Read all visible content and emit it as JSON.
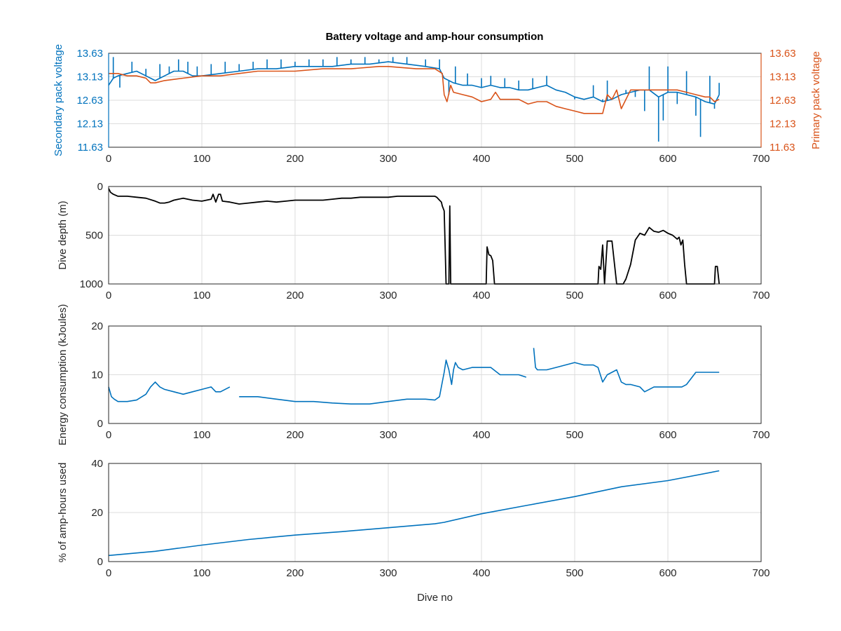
{
  "figure": {
    "title": "Battery voltage and amp-hour consumption",
    "colors": {
      "secondary": "#0072bd",
      "primary": "#d95319",
      "depth": "#000000",
      "energy": "#0072bd",
      "amp_hours": "#0072bd",
      "grid": "#dcdcdc",
      "axis": "#262626"
    }
  },
  "chart_data": [
    {
      "id": "voltage",
      "type": "line",
      "title": "Battery voltage and amp-hour consumption",
      "xlabel": "",
      "ylabel": "Secondary pack voltage",
      "y2label": "Primary pack voltage",
      "xlim": [
        0,
        700
      ],
      "ylim": [
        11.63,
        13.63
      ],
      "y2lim": [
        11.63,
        13.63
      ],
      "xticks": [
        0,
        100,
        200,
        300,
        400,
        500,
        600,
        700
      ],
      "yticks": [
        11.63,
        12.13,
        12.63,
        13.13,
        13.63
      ],
      "y2ticks": [
        11.63,
        12.13,
        12.63,
        13.13,
        13.63
      ],
      "grid": true,
      "series": [
        {
          "key": "secondary",
          "axis": "left",
          "color": "#0072bd",
          "x": [
            0,
            5,
            10,
            20,
            30,
            40,
            50,
            60,
            70,
            80,
            90,
            100,
            120,
            140,
            160,
            180,
            200,
            220,
            240,
            260,
            280,
            300,
            320,
            340,
            355,
            360,
            365,
            370,
            380,
            390,
            400,
            410,
            420,
            430,
            440,
            450,
            460,
            470,
            480,
            490,
            500,
            510,
            520,
            530,
            540,
            550,
            560,
            570,
            580,
            590,
            600,
            610,
            620,
            630,
            640,
            650,
            655
          ],
          "y": [
            12.95,
            13.1,
            13.15,
            13.2,
            13.25,
            13.15,
            13.05,
            13.15,
            13.25,
            13.25,
            13.15,
            13.15,
            13.2,
            13.25,
            13.3,
            13.3,
            13.35,
            13.35,
            13.35,
            13.4,
            13.4,
            13.45,
            13.4,
            13.35,
            13.3,
            13.1,
            13.05,
            13.0,
            12.95,
            12.95,
            12.9,
            12.95,
            12.9,
            12.9,
            12.85,
            12.85,
            12.9,
            12.95,
            12.85,
            12.8,
            12.7,
            12.65,
            12.7,
            12.6,
            12.65,
            12.75,
            12.8,
            12.85,
            12.85,
            12.7,
            12.8,
            12.8,
            12.75,
            12.7,
            12.6,
            12.55,
            12.75
          ],
          "spikes": [
            [
              5,
              13.55
            ],
            [
              12,
              12.9
            ],
            [
              25,
              13.45
            ],
            [
              40,
              13.3
            ],
            [
              55,
              13.4
            ],
            [
              65,
              13.35
            ],
            [
              75,
              13.5
            ],
            [
              85,
              13.45
            ],
            [
              95,
              13.35
            ],
            [
              110,
              13.4
            ],
            [
              125,
              13.45
            ],
            [
              140,
              13.4
            ],
            [
              155,
              13.45
            ],
            [
              170,
              13.5
            ],
            [
              185,
              13.5
            ],
            [
              200,
              13.45
            ],
            [
              215,
              13.5
            ],
            [
              230,
              13.5
            ],
            [
              245,
              13.55
            ],
            [
              260,
              13.5
            ],
            [
              275,
              13.55
            ],
            [
              290,
              13.5
            ],
            [
              305,
              13.55
            ],
            [
              320,
              13.55
            ],
            [
              340,
              13.5
            ],
            [
              355,
              13.5
            ],
            [
              365,
              12.75
            ],
            [
              372,
              13.35
            ],
            [
              385,
              13.2
            ],
            [
              400,
              13.1
            ],
            [
              410,
              13.15
            ],
            [
              425,
              13.1
            ],
            [
              440,
              13.05
            ],
            [
              455,
              13.1
            ],
            [
              470,
              13.15
            ],
            [
              500,
              12.65
            ],
            [
              520,
              12.95
            ],
            [
              530,
              12.65
            ],
            [
              535,
              13.05
            ],
            [
              545,
              12.7
            ],
            [
              555,
              12.85
            ],
            [
              565,
              12.7
            ],
            [
              575,
              12.4
            ],
            [
              580,
              13.35
            ],
            [
              590,
              11.75
            ],
            [
              595,
              12.2
            ],
            [
              600,
              13.35
            ],
            [
              610,
              12.55
            ],
            [
              620,
              13.25
            ],
            [
              630,
              12.3
            ],
            [
              635,
              11.85
            ],
            [
              645,
              13.15
            ],
            [
              650,
              12.45
            ],
            [
              655,
              13.0
            ]
          ]
        },
        {
          "key": "primary",
          "axis": "right",
          "color": "#d95319",
          "x": [
            0,
            10,
            20,
            30,
            40,
            45,
            50,
            60,
            80,
            100,
            120,
            140,
            160,
            180,
            200,
            230,
            260,
            290,
            300,
            330,
            350,
            358,
            360,
            363,
            367,
            370,
            380,
            390,
            400,
            410,
            415,
            420,
            440,
            450,
            460,
            470,
            480,
            490,
            500,
            510,
            520,
            530,
            535,
            540,
            545,
            550,
            560,
            580,
            600,
            610,
            620,
            630,
            640,
            645,
            650,
            655
          ],
          "y": [
            13.2,
            13.2,
            13.15,
            13.15,
            13.1,
            13.0,
            13.0,
            13.05,
            13.1,
            13.15,
            13.15,
            13.2,
            13.25,
            13.25,
            13.25,
            13.3,
            13.3,
            13.35,
            13.35,
            13.3,
            13.3,
            13.2,
            12.75,
            12.6,
            12.95,
            12.8,
            12.75,
            12.7,
            12.6,
            12.65,
            12.8,
            12.65,
            12.65,
            12.55,
            12.6,
            12.6,
            12.5,
            12.45,
            12.4,
            12.35,
            12.35,
            12.35,
            12.75,
            12.65,
            12.85,
            12.45,
            12.85,
            12.85,
            12.85,
            12.85,
            12.8,
            12.75,
            12.7,
            12.7,
            12.6,
            12.65
          ]
        }
      ]
    },
    {
      "id": "depth",
      "type": "line",
      "ylabel": "Dive depth (m)",
      "xlabel": "",
      "xlim": [
        0,
        700
      ],
      "ylim": [
        0,
        1000
      ],
      "y_reversed": true,
      "xticks": [
        0,
        100,
        200,
        300,
        400,
        500,
        600,
        700
      ],
      "yticks": [
        0,
        500,
        1000
      ],
      "grid": true,
      "series": [
        {
          "key": "depth",
          "color": "#000000",
          "x": [
            0,
            2,
            5,
            10,
            20,
            30,
            40,
            50,
            55,
            60,
            65,
            70,
            80,
            90,
            100,
            110,
            112,
            115,
            118,
            120,
            122,
            130,
            140,
            150,
            160,
            170,
            180,
            190,
            200,
            210,
            220,
            230,
            240,
            250,
            260,
            270,
            280,
            290,
            300,
            310,
            320,
            330,
            340,
            345,
            350,
            352,
            355,
            357,
            358,
            360,
            361,
            362,
            363,
            365,
            366,
            367,
            368,
            370,
            380,
            390,
            400,
            405,
            406,
            408,
            410,
            412,
            414,
            416,
            420,
            440,
            460,
            480,
            500,
            520,
            525,
            526,
            528,
            530,
            532,
            535,
            540,
            545,
            550,
            552,
            555,
            560,
            565,
            570,
            575,
            580,
            585,
            590,
            595,
            600,
            605,
            610,
            612,
            614,
            616,
            618,
            620,
            630,
            640,
            650,
            651,
            653,
            655
          ],
          "y": [
            20,
            60,
            80,
            100,
            100,
            110,
            120,
            150,
            170,
            170,
            160,
            140,
            120,
            140,
            150,
            130,
            80,
            160,
            80,
            80,
            150,
            160,
            180,
            170,
            160,
            150,
            160,
            150,
            140,
            140,
            140,
            140,
            130,
            120,
            120,
            110,
            110,
            110,
            110,
            100,
            100,
            100,
            100,
            100,
            100,
            110,
            140,
            160,
            200,
            250,
            600,
            1000,
            1000,
            1000,
            200,
            1000,
            1000,
            1000,
            1000,
            1000,
            1000,
            1000,
            620,
            700,
            710,
            760,
            1000,
            1000,
            1000,
            1000,
            1000,
            1000,
            1000,
            1000,
            1000,
            820,
            850,
            600,
            1000,
            560,
            560,
            1000,
            1000,
            1000,
            950,
            800,
            550,
            480,
            500,
            420,
            460,
            470,
            450,
            480,
            500,
            540,
            520,
            600,
            550,
            800,
            1000,
            1000,
            1000,
            1000,
            820,
            820,
            1000
          ]
        }
      ]
    },
    {
      "id": "energy",
      "type": "line",
      "ylabel": "Energy consumption (kJoules)",
      "xlabel": "",
      "xlim": [
        0,
        700
      ],
      "ylim": [
        0,
        20
      ],
      "xticks": [
        0,
        100,
        200,
        300,
        400,
        500,
        600,
        700
      ],
      "yticks": [
        0,
        10,
        20
      ],
      "grid": true,
      "series": [
        {
          "key": "energy",
          "color": "#0072bd",
          "x": [
            0,
            3,
            6,
            10,
            15,
            20,
            30,
            40,
            45,
            50,
            55,
            60,
            70,
            80,
            90,
            100,
            110,
            115,
            120,
            130,
            135,
            140,
            160,
            180,
            200,
            220,
            240,
            260,
            280,
            300,
            320,
            340,
            350,
            355,
            358,
            360,
            362,
            365,
            368,
            370,
            372,
            375,
            380,
            390,
            400,
            410,
            420,
            430,
            440,
            448,
            450,
            455,
            456,
            458,
            460,
            470,
            480,
            490,
            500,
            510,
            520,
            525,
            530,
            535,
            540,
            545,
            550,
            555,
            560,
            570,
            575,
            580,
            585,
            590,
            600,
            610,
            615,
            620,
            630,
            640,
            650,
            655
          ],
          "y": [
            7.5,
            5.5,
            5.0,
            4.5,
            4.5,
            4.5,
            4.8,
            6.0,
            7.5,
            8.5,
            7.5,
            7.0,
            6.5,
            6.0,
            6.5,
            7.0,
            7.5,
            6.5,
            6.5,
            7.5,
            null,
            5.5,
            5.5,
            5.0,
            4.5,
            4.5,
            4.2,
            4.0,
            4.0,
            4.5,
            5.0,
            5.0,
            4.8,
            5.5,
            8.5,
            10.5,
            13.0,
            11.0,
            8.0,
            11.0,
            12.5,
            11.5,
            11.0,
            11.5,
            11.5,
            11.5,
            10.0,
            10.0,
            10.0,
            9.5,
            null,
            null,
            15.5,
            11.5,
            11.0,
            11.0,
            11.5,
            12.0,
            12.5,
            12.0,
            12.0,
            11.5,
            8.5,
            10.0,
            10.5,
            11.0,
            8.5,
            8.0,
            8.0,
            7.5,
            6.5,
            7.0,
            7.5,
            7.5,
            7.5,
            7.5,
            7.5,
            8.0,
            10.5,
            10.5,
            10.5,
            10.5
          ]
        }
      ]
    },
    {
      "id": "amp_hours",
      "type": "line",
      "ylabel": "% of amp-hours used",
      "xlabel": "Dive no",
      "xlim": [
        0,
        700
      ],
      "ylim": [
        0,
        40
      ],
      "xticks": [
        0,
        100,
        200,
        300,
        400,
        500,
        600,
        700
      ],
      "yticks": [
        0,
        20,
        40
      ],
      "grid": true,
      "series": [
        {
          "key": "amp_hours",
          "color": "#0072bd",
          "x": [
            0,
            50,
            100,
            150,
            200,
            250,
            300,
            350,
            360,
            400,
            450,
            500,
            550,
            600,
            655
          ],
          "y": [
            2.5,
            4.2,
            6.7,
            9.0,
            10.8,
            12.2,
            13.8,
            15.4,
            16.0,
            19.5,
            23.0,
            26.5,
            30.5,
            33.0,
            37.0
          ]
        }
      ]
    }
  ]
}
